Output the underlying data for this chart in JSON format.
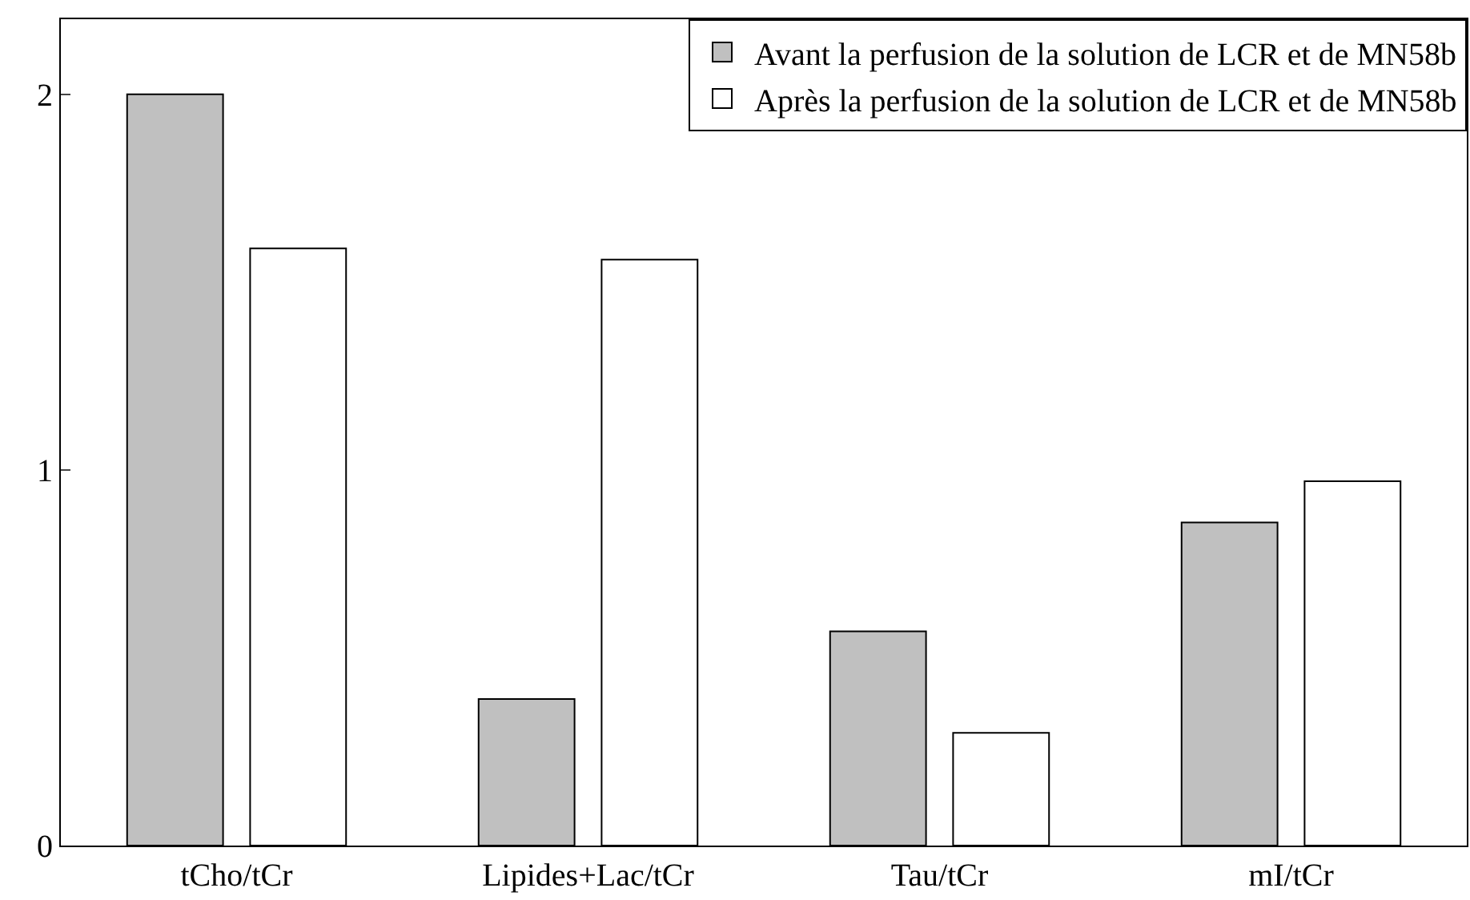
{
  "chart_data": {
    "type": "bar",
    "categories": [
      "tCho/tCr",
      "Lipides+Lac/tCr",
      "Tau/tCr",
      "mI/tCr"
    ],
    "series": [
      {
        "name": "Avant la perfusion de la solution de LCR et de MN58b",
        "color": "#c0c0c0",
        "values": [
          2.0,
          0.39,
          0.57,
          0.86
        ]
      },
      {
        "name": "Après la perfusion de la solution de LCR et de MN58b",
        "color": "#ffffff",
        "values": [
          1.59,
          1.56,
          0.3,
          0.97
        ]
      }
    ],
    "ylim": [
      0,
      2.2
    ],
    "yticks": [
      0,
      1,
      2
    ],
    "legend": "top right"
  }
}
